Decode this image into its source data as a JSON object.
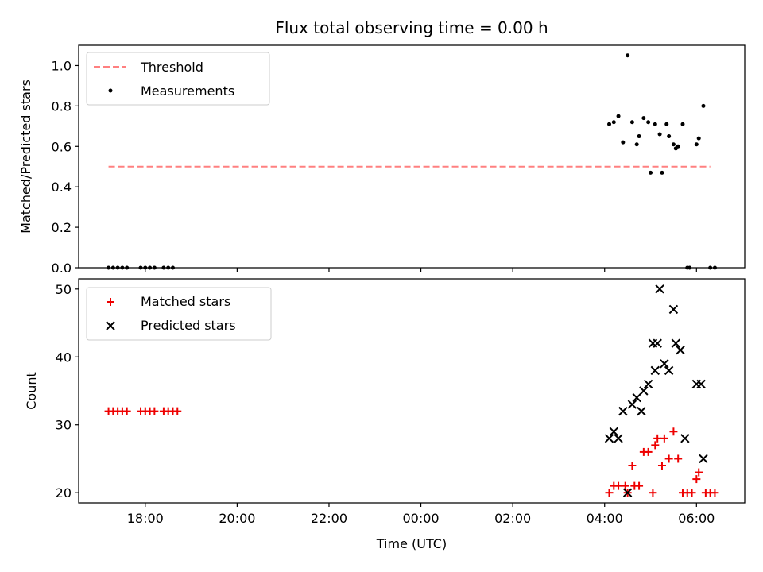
{
  "figure": {
    "title": "Flux total observing time = 0.00 h",
    "xlabel": "Time (UTC)",
    "x_ticks": [
      "18:00",
      "20:00",
      "22:00",
      "00:00",
      "02:00",
      "04:00",
      "06:00"
    ]
  },
  "colors": {
    "threshold": "#ff8080",
    "measurements": "#000000",
    "matched": "#ee0000",
    "predicted": "#000000"
  },
  "chart_data": [
    {
      "type": "scatter",
      "panel": "top",
      "ylabel": "Matched/Predicted stars",
      "xlim_hours": [
        16.55,
        31.05
      ],
      "ylim": [
        0,
        1.1
      ],
      "y_ticks": [
        0.0,
        0.2,
        0.4,
        0.6,
        0.8,
        1.0
      ],
      "legend_position": "top-left",
      "threshold": {
        "name": "Threshold",
        "y": 0.5,
        "x_range_hours": [
          17.2,
          30.3
        ]
      },
      "series": [
        {
          "name": "Measurements",
          "points": [
            [
              17.2,
              0
            ],
            [
              17.3,
              0
            ],
            [
              17.4,
              0
            ],
            [
              17.5,
              0
            ],
            [
              17.6,
              0
            ],
            [
              17.9,
              0
            ],
            [
              18.0,
              0
            ],
            [
              18.1,
              0
            ],
            [
              18.2,
              0
            ],
            [
              18.4,
              0
            ],
            [
              18.5,
              0
            ],
            [
              18.6,
              0
            ],
            [
              28.1,
              0.71
            ],
            [
              28.2,
              0.72
            ],
            [
              28.3,
              0.75
            ],
            [
              28.4,
              0.62
            ],
            [
              28.5,
              1.05
            ],
            [
              28.6,
              0.72
            ],
            [
              28.7,
              0.61
            ],
            [
              28.75,
              0.65
            ],
            [
              28.85,
              0.74
            ],
            [
              28.95,
              0.72
            ],
            [
              29.0,
              0.47
            ],
            [
              29.1,
              0.71
            ],
            [
              29.2,
              0.66
            ],
            [
              29.25,
              0.47
            ],
            [
              29.35,
              0.71
            ],
            [
              29.4,
              0.65
            ],
            [
              29.5,
              0.61
            ],
            [
              29.55,
              0.59
            ],
            [
              29.6,
              0.6
            ],
            [
              29.7,
              0.71
            ],
            [
              29.8,
              0
            ],
            [
              29.85,
              0
            ],
            [
              30.0,
              0.61
            ],
            [
              30.05,
              0.64
            ],
            [
              30.15,
              0.8
            ],
            [
              30.3,
              0
            ],
            [
              30.4,
              0
            ]
          ]
        }
      ]
    },
    {
      "type": "scatter",
      "panel": "bottom",
      "ylabel": "Count",
      "xlim_hours": [
        16.55,
        31.05
      ],
      "ylim": [
        18.5,
        51.5
      ],
      "y_ticks": [
        20,
        30,
        40,
        50
      ],
      "legend_position": "top-left",
      "series": [
        {
          "name": "Matched stars",
          "marker": "plus",
          "points": [
            [
              17.2,
              32
            ],
            [
              17.3,
              32
            ],
            [
              17.4,
              32
            ],
            [
              17.5,
              32
            ],
            [
              17.6,
              32
            ],
            [
              17.9,
              32
            ],
            [
              18.0,
              32
            ],
            [
              18.1,
              32
            ],
            [
              18.2,
              32
            ],
            [
              18.4,
              32
            ],
            [
              18.5,
              32
            ],
            [
              18.6,
              32
            ],
            [
              18.7,
              32
            ],
            [
              28.1,
              20
            ],
            [
              28.2,
              21
            ],
            [
              28.3,
              21
            ],
            [
              28.45,
              21
            ],
            [
              28.5,
              20
            ],
            [
              28.6,
              24
            ],
            [
              28.65,
              21
            ],
            [
              28.75,
              21
            ],
            [
              28.85,
              26
            ],
            [
              28.95,
              26
            ],
            [
              29.05,
              20
            ],
            [
              29.1,
              27
            ],
            [
              29.15,
              28
            ],
            [
              29.25,
              24
            ],
            [
              29.3,
              28
            ],
            [
              29.4,
              25
            ],
            [
              29.5,
              29
            ],
            [
              29.6,
              25
            ],
            [
              29.7,
              20
            ],
            [
              29.8,
              20
            ],
            [
              29.9,
              20
            ],
            [
              30.0,
              22
            ],
            [
              30.05,
              23
            ],
            [
              30.2,
              20
            ],
            [
              30.3,
              20
            ],
            [
              30.4,
              20
            ]
          ]
        },
        {
          "name": "Predicted stars",
          "marker": "x",
          "points": [
            [
              28.1,
              28
            ],
            [
              28.2,
              29
            ],
            [
              28.3,
              28
            ],
            [
              28.4,
              32
            ],
            [
              28.5,
              20
            ],
            [
              28.6,
              33
            ],
            [
              28.7,
              34
            ],
            [
              28.8,
              32
            ],
            [
              28.85,
              35
            ],
            [
              28.95,
              36
            ],
            [
              29.05,
              42
            ],
            [
              29.1,
              38
            ],
            [
              29.15,
              42
            ],
            [
              29.2,
              50
            ],
            [
              29.3,
              39
            ],
            [
              29.4,
              38
            ],
            [
              29.5,
              47
            ],
            [
              29.55,
              42
            ],
            [
              29.65,
              41
            ],
            [
              29.75,
              28
            ],
            [
              30.0,
              36
            ],
            [
              30.1,
              36
            ],
            [
              30.15,
              25
            ]
          ]
        }
      ]
    }
  ]
}
